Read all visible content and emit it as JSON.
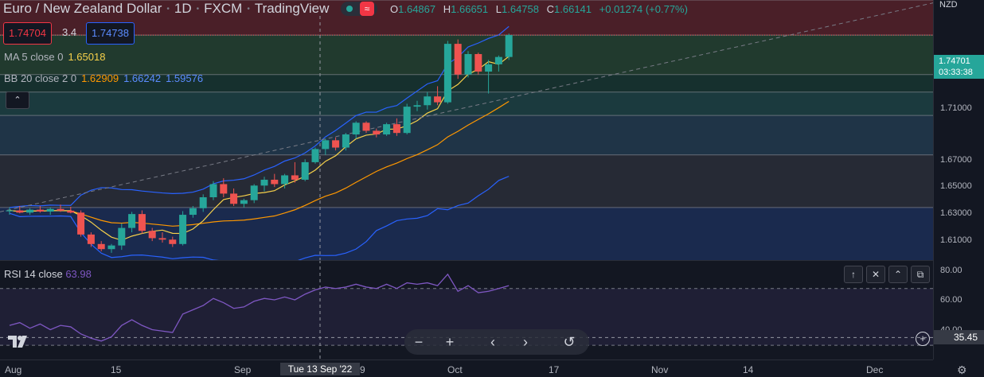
{
  "header": {
    "symbol_name": "Euro / New Zealand Dollar",
    "interval": "1D",
    "exchange": "FXCM",
    "source": "TradingView",
    "ohlc": {
      "o_label": "O",
      "o_value": "1.64867",
      "h_label": "H",
      "h_value": "1.66651",
      "l_label": "L",
      "l_value": "1.64758",
      "c_label": "C",
      "c_value": "1.66141",
      "change": "+0.01274 (+0.77%)"
    }
  },
  "trade": {
    "bid": "1.74704",
    "spread": "3.4",
    "ask": "1.74738"
  },
  "indicators": {
    "ma": {
      "name": "MA 5 close 0",
      "value": "1.65018",
      "color": "#f7d14a"
    },
    "bb": {
      "name": "BB 20 close 2 0",
      "basis": "1.62909",
      "upper": "1.66242",
      "lower": "1.59576",
      "basis_color": "#ff9800",
      "band_color": "#2962ff"
    },
    "rsi": {
      "name": "RSI 14 close",
      "value": "63.98",
      "color": "#7e57c2"
    }
  },
  "price_axis": {
    "currency": "NZD",
    "labels": [
      "1.71000",
      "1.67000",
      "1.65000",
      "1.63000",
      "1.61000"
    ],
    "current_price": "1.74701",
    "countdown": "03:33:38"
  },
  "rsi_axis": {
    "labels": [
      "80.00",
      "60.00",
      "40.00"
    ],
    "cursor_value": "35.45"
  },
  "time_axis": {
    "labels": [
      "Aug",
      "15",
      "Sep",
      "9",
      "Oct",
      "17",
      "Nov",
      "14",
      "Dec"
    ],
    "crosshair_label": "Tue 13 Sep '22"
  },
  "nav_buttons": {
    "zoom_out": "−",
    "zoom_in": "+",
    "scroll_left": "‹",
    "scroll_right": "›",
    "reset": "↺"
  },
  "pane_controls": {
    "up": "↑",
    "close": "✕",
    "collapse": "⌃",
    "maximize": "⧉",
    "collapse_main": "⌃"
  },
  "colors": {
    "up": "#26a69a",
    "down": "#ef5350",
    "background": "#131722",
    "grid": "#2a2e39"
  },
  "chart_data": {
    "type": "candlestick",
    "candles_ohlc": [
      [
        1.6264,
        1.629,
        1.624,
        1.627
      ],
      [
        1.627,
        1.63,
        1.625,
        1.6255
      ],
      [
        1.6255,
        1.6285,
        1.624,
        1.6275
      ],
      [
        1.6275,
        1.63,
        1.6255,
        1.6262
      ],
      [
        1.6262,
        1.629,
        1.624,
        1.628
      ],
      [
        1.628,
        1.631,
        1.626,
        1.6268
      ],
      [
        1.6268,
        1.6295,
        1.625,
        1.6255
      ],
      [
        1.6255,
        1.627,
        1.609,
        1.6105
      ],
      [
        1.6105,
        1.612,
        1.602,
        1.604
      ],
      [
        1.604,
        1.606,
        1.599,
        1.6005
      ],
      [
        1.6005,
        1.604,
        1.598,
        1.603
      ],
      [
        1.603,
        1.618,
        1.6,
        1.615
      ],
      [
        1.615,
        1.626,
        1.612,
        1.6245
      ],
      [
        1.6245,
        1.627,
        1.611,
        1.613
      ],
      [
        1.613,
        1.615,
        1.606,
        1.608
      ],
      [
        1.608,
        1.612,
        1.605,
        1.607
      ],
      [
        1.607,
        1.609,
        1.602,
        1.604
      ],
      [
        1.604,
        1.6265,
        1.603,
        1.624
      ],
      [
        1.624,
        1.63,
        1.622,
        1.6285
      ],
      [
        1.6285,
        1.638,
        1.626,
        1.636
      ],
      [
        1.636,
        1.647,
        1.634,
        1.645
      ],
      [
        1.645,
        1.649,
        1.636,
        1.6385
      ],
      [
        1.6385,
        1.642,
        1.63,
        1.6315
      ],
      [
        1.6315,
        1.635,
        1.629,
        1.634
      ],
      [
        1.634,
        1.645,
        1.632,
        1.644
      ],
      [
        1.644,
        1.65,
        1.64,
        1.648
      ],
      [
        1.648,
        1.652,
        1.643,
        1.645
      ],
      [
        1.645,
        1.652,
        1.642,
        1.651
      ],
      [
        1.651,
        1.66,
        1.646,
        1.648
      ],
      [
        1.648,
        1.662,
        1.647,
        1.66
      ],
      [
        1.66,
        1.67,
        1.659,
        1.669
      ],
      [
        1.669,
        1.676,
        1.665,
        1.675
      ],
      [
        1.675,
        1.677,
        1.668,
        1.67
      ],
      [
        1.67,
        1.68,
        1.668,
        1.679
      ],
      [
        1.679,
        1.688,
        1.676,
        1.687
      ],
      [
        1.687,
        1.688,
        1.68,
        1.6815
      ],
      [
        1.6815,
        1.683,
        1.677,
        1.679
      ],
      [
        1.679,
        1.687,
        1.678,
        1.686
      ],
      [
        1.686,
        1.69,
        1.678,
        1.68
      ],
      [
        1.68,
        1.7,
        1.679,
        1.698
      ],
      [
        1.698,
        1.702,
        1.695,
        1.699
      ],
      [
        1.699,
        1.708,
        1.696,
        1.705
      ],
      [
        1.705,
        1.712,
        1.699,
        1.701
      ],
      [
        1.701,
        1.743,
        1.7,
        1.741
      ],
      [
        1.741,
        1.744,
        1.717,
        1.72
      ],
      [
        1.72,
        1.736,
        1.718,
        1.734
      ],
      [
        1.734,
        1.735,
        1.72,
        1.722
      ],
      [
        1.722,
        1.73,
        1.707,
        1.727
      ],
      [
        1.727,
        1.733,
        1.722,
        1.732
      ],
      [
        1.732,
        1.748,
        1.73,
        1.747
      ]
    ],
    "ylim": [
      1.593,
      1.771
    ],
    "rsi_values": [
      44,
      46,
      42,
      45,
      41,
      44,
      43,
      38,
      35,
      33,
      36,
      44,
      48,
      44,
      41,
      40,
      39,
      52,
      55,
      58,
      63,
      60,
      56,
      57,
      61,
      63,
      62,
      64,
      62,
      66,
      69,
      71,
      70,
      71,
      73,
      71,
      70,
      73,
      70,
      74,
      73,
      74,
      72,
      80,
      68,
      72,
      67,
      68,
      70,
      72
    ],
    "rsi_ylim": [
      20,
      90
    ]
  }
}
